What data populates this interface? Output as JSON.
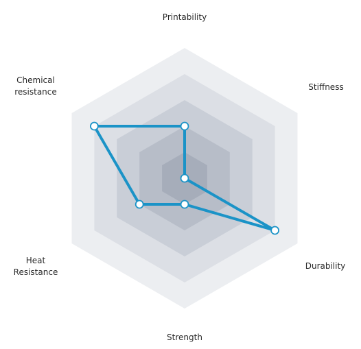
{
  "chart_data": {
    "type": "radar",
    "title": "",
    "axes": [
      {
        "key": "printability",
        "label_lines": [
          "Printability"
        ]
      },
      {
        "key": "stiffness",
        "label_lines": [
          "Stiffness"
        ]
      },
      {
        "key": "durability",
        "label_lines": [
          "Durability"
        ]
      },
      {
        "key": "strength",
        "label_lines": [
          "Strength"
        ]
      },
      {
        "key": "heat_resistance",
        "label_lines": [
          "Heat",
          "Resistance"
        ]
      },
      {
        "key": "chemical_resistance",
        "label_lines": [
          "Chemical",
          "resistance"
        ]
      }
    ],
    "scale": {
      "min": 0,
      "max": 5,
      "rings": 5
    },
    "series": [
      {
        "values": [
          2,
          0,
          4,
          1,
          2,
          4
        ]
      }
    ],
    "legend": "none",
    "grid": true,
    "colors": {
      "line": "#1b93c7",
      "marker_fill": "#ffffff",
      "ring_fills": [
        "#eceef1",
        "#dcdfe5",
        "#c9ced7",
        "#b7bdc8",
        "#a6adba"
      ],
      "label_text": "#2a2a2a"
    }
  }
}
